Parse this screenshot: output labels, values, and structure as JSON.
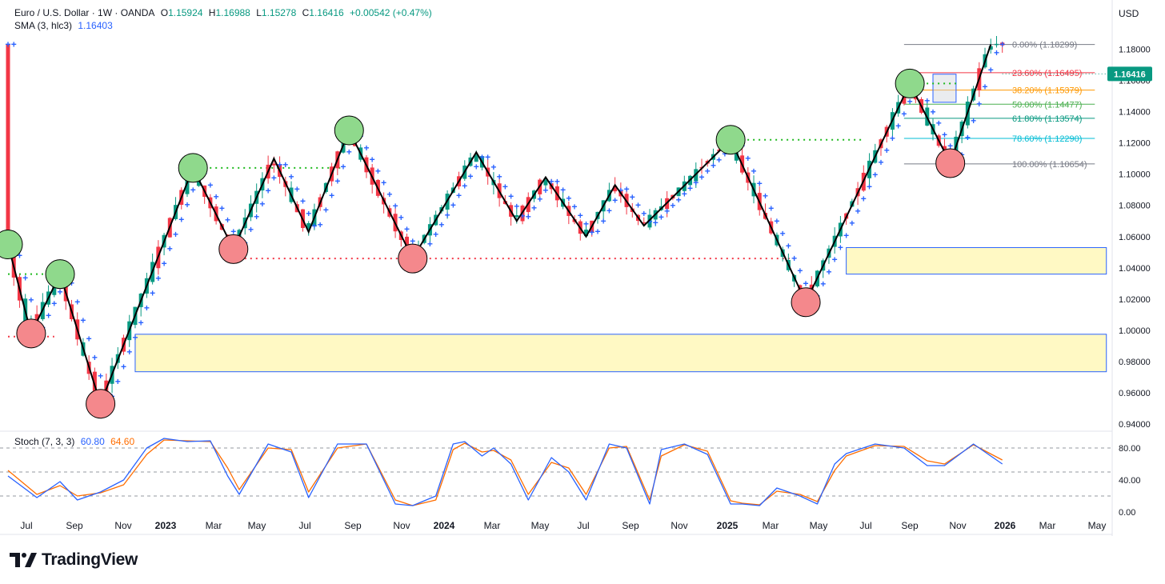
{
  "header": {
    "symbol": "Euro / U.S. Dollar · 1W · OANDA",
    "o_label": "O",
    "o_value": "1.15924",
    "h_label": "H",
    "h_value": "1.16988",
    "l_label": "L",
    "l_value": "1.15278",
    "c_label": "C",
    "c_value": "1.16416",
    "change": "+0.00542 (+0.47%)",
    "sma_label": "SMA (3, hlc3)",
    "sma_value": "1.16403",
    "currency": "USD",
    "price_badge": "1.16416"
  },
  "stoch": {
    "label": "Stoch (7, 3, 3)",
    "k_value": "60.80",
    "d_value": "64.60"
  },
  "logo": {
    "text": "TradingView"
  },
  "colors": {
    "up": "#089981",
    "down": "#f23645",
    "sma": "#2962ff",
    "stoch_d": "#ff6d00",
    "zone_fill": "#fff9c4",
    "zone_border": "#2962ff",
    "bull_circle": "#8fd98c",
    "bear_circle": "#f4888c"
  },
  "chart_data": [
    {
      "type": "candlestick",
      "title": "Euro / U.S. Dollar · 1W · OANDA",
      "x_labels": [
        "Jul",
        "Sep",
        "Nov",
        "2023",
        "Mar",
        "May",
        "Jul",
        "Sep",
        "Nov",
        "2024",
        "Mar",
        "May",
        "Jul",
        "Sep",
        "Nov",
        "2025",
        "Mar",
        "May",
        "Jul",
        "Sep",
        "Nov",
        "2026",
        "Mar",
        "May"
      ],
      "x_label_bold": [
        "2023",
        "2024",
        "2025",
        "2026"
      ],
      "y_ticks": [
        "1.18000",
        "1.16000",
        "1.14000",
        "1.12000",
        "1.10000",
        "1.08000",
        "1.06000",
        "1.04000",
        "1.02000",
        "1.00000",
        "0.98000",
        "0.96000",
        "0.94000"
      ],
      "ylim": [
        0.938,
        1.191
      ],
      "xlim_weeks": [
        0,
        210
      ],
      "swing_path": [
        [
          0,
          1.055
        ],
        [
          4,
          0.998
        ],
        [
          9,
          1.036
        ],
        [
          16,
          0.953
        ],
        [
          32,
          1.104
        ],
        [
          39,
          1.052
        ],
        [
          46,
          1.11
        ],
        [
          52,
          1.063
        ],
        [
          59,
          1.128
        ],
        [
          70,
          1.046
        ],
        [
          81,
          1.114
        ],
        [
          88,
          1.07
        ],
        [
          93,
          1.098
        ],
        [
          100,
          1.06
        ],
        [
          105,
          1.093
        ],
        [
          110,
          1.067
        ],
        [
          125,
          1.122
        ],
        [
          138,
          1.018
        ],
        [
          156,
          1.158
        ],
        [
          163,
          1.107
        ],
        [
          170,
          1.183
        ]
      ],
      "pivots_high": [
        [
          0,
          1.055
        ],
        [
          9,
          1.036
        ],
        [
          32,
          1.104
        ],
        [
          59,
          1.128
        ],
        [
          125,
          1.122
        ],
        [
          156,
          1.158
        ]
      ],
      "pivots_low": [
        [
          4,
          0.998
        ],
        [
          16,
          0.953
        ],
        [
          39,
          1.052
        ],
        [
          70,
          1.046
        ],
        [
          138,
          1.018
        ],
        [
          163,
          1.107
        ]
      ],
      "green_dotted_lines": [
        [
          0,
          9,
          1.036
        ],
        [
          32,
          58,
          1.104
        ],
        [
          125,
          148,
          1.122
        ],
        [
          156,
          164,
          1.158
        ]
      ],
      "red_dotted_lines": [
        [
          0,
          8,
          0.996
        ],
        [
          39,
          136,
          1.046
        ]
      ],
      "zones": [
        [
          22,
          190,
          0.9735,
          0.9975
        ],
        [
          145,
          190,
          1.036,
          1.053
        ]
      ],
      "fib_levels": [
        {
          "label": "0.00% (1.18299)",
          "value": 1.18299,
          "color": "#787b86"
        },
        {
          "label": "23.60% (1.16495)",
          "value": 1.16495,
          "color": "#f23645"
        },
        {
          "label": "38.20% (1.15379)",
          "value": 1.15379,
          "color": "#ff9800"
        },
        {
          "label": "50.00% (1.14477)",
          "value": 1.14477,
          "color": "#4caf50"
        },
        {
          "label": "61.80% (1.13574)",
          "value": 1.13574,
          "color": "#089981"
        },
        {
          "label": "78.60% (1.12290)",
          "value": 1.1229,
          "color": "#00bcd4"
        },
        {
          "label": "100.00% (1.10654)",
          "value": 1.10654,
          "color": "#787b86"
        }
      ],
      "fib_x_range": [
        155,
        188
      ]
    },
    {
      "type": "line",
      "title": "Stoch (7, 3, 3)",
      "y_ticks": [
        "80.00",
        "40.00",
        "0.00"
      ],
      "ylim": [
        -5,
        95
      ],
      "bands": [
        80,
        50,
        20
      ],
      "k_anchors": [
        [
          0,
          45
        ],
        [
          5,
          18
        ],
        [
          9,
          38
        ],
        [
          12,
          15
        ],
        [
          16,
          25
        ],
        [
          20,
          40
        ],
        [
          24,
          80
        ],
        [
          27,
          92
        ],
        [
          31,
          88
        ],
        [
          35,
          89
        ],
        [
          38,
          45
        ],
        [
          40,
          22
        ],
        [
          45,
          85
        ],
        [
          49,
          75
        ],
        [
          52,
          18
        ],
        [
          57,
          85
        ],
        [
          62,
          85
        ],
        [
          67,
          10
        ],
        [
          70,
          8
        ],
        [
          74,
          20
        ],
        [
          77,
          85
        ],
        [
          79,
          88
        ],
        [
          82,
          70
        ],
        [
          84,
          80
        ],
        [
          87,
          60
        ],
        [
          90,
          15
        ],
        [
          94,
          68
        ],
        [
          97,
          50
        ],
        [
          100,
          15
        ],
        [
          104,
          85
        ],
        [
          107,
          80
        ],
        [
          111,
          10
        ],
        [
          113,
          78
        ],
        [
          117,
          85
        ],
        [
          121,
          72
        ],
        [
          125,
          10
        ],
        [
          127,
          10
        ],
        [
          130,
          8
        ],
        [
          133,
          30
        ],
        [
          137,
          20
        ],
        [
          140,
          10
        ],
        [
          143,
          60
        ],
        [
          145,
          73
        ],
        [
          150,
          85
        ],
        [
          155,
          80
        ],
        [
          159,
          58
        ],
        [
          162,
          58
        ],
        [
          167,
          85
        ],
        [
          172,
          60
        ]
      ],
      "d_anchors": [
        [
          0,
          52
        ],
        [
          5,
          22
        ],
        [
          9,
          33
        ],
        [
          12,
          20
        ],
        [
          16,
          24
        ],
        [
          20,
          34
        ],
        [
          24,
          72
        ],
        [
          27,
          90
        ],
        [
          31,
          89
        ],
        [
          35,
          88
        ],
        [
          38,
          55
        ],
        [
          40,
          28
        ],
        [
          45,
          80
        ],
        [
          49,
          78
        ],
        [
          52,
          25
        ],
        [
          57,
          80
        ],
        [
          62,
          85
        ],
        [
          67,
          15
        ],
        [
          70,
          8
        ],
        [
          74,
          15
        ],
        [
          77,
          78
        ],
        [
          79,
          86
        ],
        [
          82,
          75
        ],
        [
          84,
          77
        ],
        [
          87,
          65
        ],
        [
          90,
          22
        ],
        [
          94,
          62
        ],
        [
          97,
          55
        ],
        [
          100,
          22
        ],
        [
          104,
          80
        ],
        [
          107,
          82
        ],
        [
          111,
          15
        ],
        [
          113,
          70
        ],
        [
          117,
          84
        ],
        [
          121,
          76
        ],
        [
          125,
          14
        ],
        [
          127,
          11
        ],
        [
          130,
          9
        ],
        [
          133,
          26
        ],
        [
          137,
          22
        ],
        [
          140,
          13
        ],
        [
          143,
          52
        ],
        [
          145,
          70
        ],
        [
          150,
          83
        ],
        [
          155,
          82
        ],
        [
          159,
          64
        ],
        [
          162,
          60
        ],
        [
          167,
          84
        ],
        [
          172,
          65
        ]
      ]
    }
  ]
}
